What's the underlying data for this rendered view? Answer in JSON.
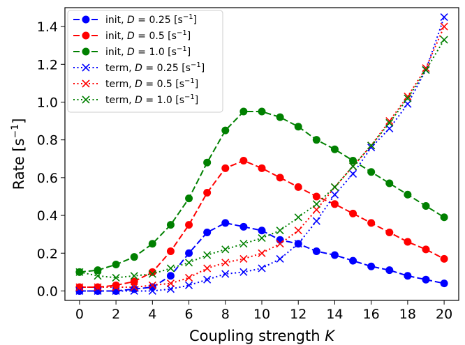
{
  "chart_data": {
    "type": "line",
    "xlabel": "Coupling strength",
    "xlabel_var": "K",
    "ylabel": "Rate [s",
    "ylabel_sup": "−1",
    "ylabel_end": "]",
    "xlim": [
      -0.8,
      20.8
    ],
    "ylim": [
      -0.05,
      1.5
    ],
    "xticks": [
      0,
      2,
      4,
      6,
      8,
      10,
      12,
      14,
      16,
      18,
      20
    ],
    "yticks": [
      0.0,
      0.2,
      0.4,
      0.6,
      0.8,
      1.0,
      1.2,
      1.4
    ],
    "ytick_labels": [
      "0.0",
      "0.2",
      "0.4",
      "0.6",
      "0.8",
      "1.0",
      "1.2",
      "1.4"
    ],
    "grid": false,
    "legend_position": "top-left",
    "x": [
      0,
      1,
      2,
      3,
      4,
      5,
      6,
      7,
      8,
      9,
      10,
      11,
      12,
      13,
      14,
      15,
      16,
      17,
      18,
      19,
      20
    ],
    "series": [
      {
        "name": "init, D = 0.25 [s−1]",
        "legend_prefix": "init, ",
        "legend_value": "0.25",
        "color": "#0000ff",
        "marker": "circle",
        "linestyle": "dashed",
        "values": [
          0.0,
          0.0,
          0.0,
          0.01,
          0.02,
          0.08,
          0.2,
          0.31,
          0.36,
          0.34,
          0.32,
          0.27,
          0.25,
          0.21,
          0.19,
          0.16,
          0.13,
          0.11,
          0.08,
          0.06,
          0.04
        ]
      },
      {
        "name": "init, D = 0.5 [s−1]",
        "legend_prefix": "init, ",
        "legend_value": "0.5",
        "color": "#ff0000",
        "marker": "circle",
        "linestyle": "dashed",
        "values": [
          0.02,
          0.02,
          0.03,
          0.05,
          0.1,
          0.21,
          0.35,
          0.52,
          0.65,
          0.69,
          0.65,
          0.6,
          0.55,
          0.5,
          0.46,
          0.41,
          0.36,
          0.31,
          0.26,
          0.22,
          0.17
        ]
      },
      {
        "name": "init, D = 1.0 [s−1]",
        "legend_prefix": "init, ",
        "legend_value": "1.0",
        "color": "#008000",
        "marker": "circle",
        "linestyle": "dashed",
        "values": [
          0.1,
          0.11,
          0.14,
          0.18,
          0.25,
          0.35,
          0.49,
          0.68,
          0.85,
          0.95,
          0.95,
          0.92,
          0.87,
          0.8,
          0.75,
          0.69,
          0.63,
          0.57,
          0.51,
          0.45,
          0.39
        ]
      },
      {
        "name": "term, D = 0.25 [s−1]",
        "legend_prefix": "term, ",
        "legend_value": "0.25",
        "color": "#0000ff",
        "marker": "x",
        "linestyle": "dotted",
        "values": [
          0.0,
          0.0,
          0.0,
          0.0,
          0.0,
          0.01,
          0.03,
          0.06,
          0.09,
          0.1,
          0.12,
          0.17,
          0.25,
          0.37,
          0.51,
          0.62,
          0.76,
          0.86,
          0.99,
          1.17,
          1.45
        ]
      },
      {
        "name": "term, D = 0.5 [s−1]",
        "legend_prefix": "term, ",
        "legend_value": "0.5",
        "color": "#ff0000",
        "marker": "x",
        "linestyle": "dotted",
        "values": [
          0.02,
          0.02,
          0.02,
          0.02,
          0.03,
          0.04,
          0.07,
          0.12,
          0.15,
          0.17,
          0.2,
          0.25,
          0.32,
          0.43,
          0.55,
          0.66,
          0.77,
          0.9,
          1.03,
          1.18,
          1.4
        ]
      },
      {
        "name": "term, D = 1.0 [s−1]",
        "legend_prefix": "term, ",
        "legend_value": "1.0",
        "color": "#008000",
        "marker": "x",
        "linestyle": "dotted",
        "values": [
          0.1,
          0.08,
          0.07,
          0.08,
          0.09,
          0.12,
          0.15,
          0.19,
          0.22,
          0.25,
          0.28,
          0.32,
          0.39,
          0.46,
          0.55,
          0.66,
          0.77,
          0.89,
          1.02,
          1.17,
          1.33
        ]
      }
    ]
  }
}
